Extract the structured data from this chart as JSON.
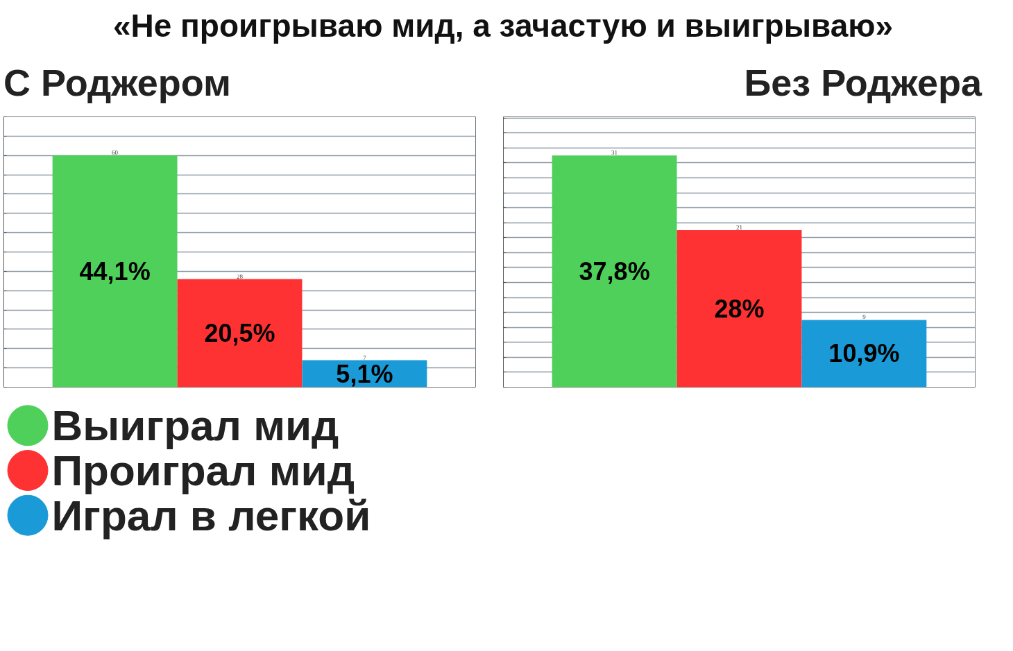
{
  "chart_data": [
    {
      "type": "bar",
      "title": "«Не проигрываю мид, а зачастую и выигрываю»",
      "subtitle": "С Роджером",
      "categories": [
        null
      ],
      "series": [
        {
          "name": "Выиграл мид",
          "color": "#4fd05a",
          "values": [
            60
          ]
        },
        {
          "name": "Проиграл мид",
          "color": "#fe3232",
          "values": [
            28
          ]
        },
        {
          "name": "Играл в легкой",
          "color": "#1a9ad6",
          "values": [
            7
          ]
        }
      ],
      "annotations": [
        "44,1%",
        "20,5%",
        "5,1%"
      ],
      "tick_labels": false,
      "grid": "y",
      "data_labels": true,
      "legend": "bottom"
    },
    {
      "type": "bar",
      "subtitle": "Без Роджера",
      "categories": [
        null
      ],
      "series": [
        {
          "color": "#4fd05a",
          "values": [
            31
          ]
        },
        {
          "color": "#fe3232",
          "values": [
            21
          ]
        },
        {
          "color": "#1a9ad6",
          "values": [
            9
          ]
        }
      ],
      "annotations": [
        "37,8%",
        "28%",
        "10,9%"
      ],
      "tick_labels": false,
      "grid": "y",
      "data_labels": true
    }
  ]
}
